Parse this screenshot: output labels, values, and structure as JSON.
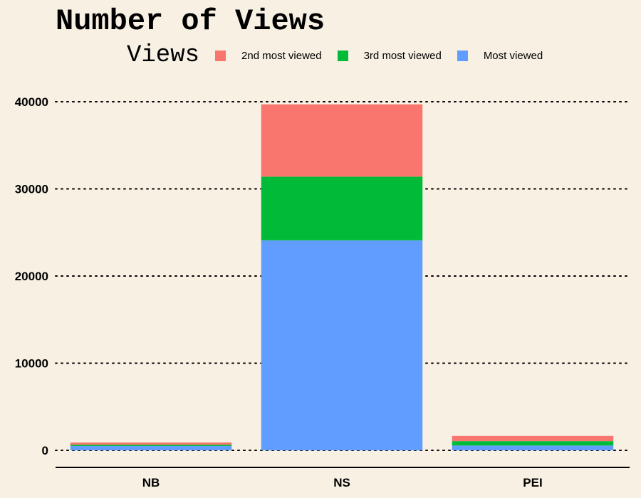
{
  "chart_data": {
    "type": "bar",
    "stacked": true,
    "title": "Number of Views",
    "xlabel": "",
    "ylabel": "",
    "categories": [
      "NB",
      "NS",
      "PEI"
    ],
    "ylim": [
      0,
      40000
    ],
    "yticks": [
      0,
      10000,
      20000,
      30000,
      40000
    ],
    "grid": "horizontal-dotted",
    "legend": {
      "title": "Views",
      "position": "top",
      "entries": [
        "2nd most viewed",
        "3rd most viewed",
        "Most viewed"
      ]
    },
    "series": [
      {
        "name": "Most viewed",
        "color": "#619cff",
        "values": [
          500,
          24100,
          550
        ]
      },
      {
        "name": "3rd most viewed",
        "color": "#00ba38",
        "values": [
          150,
          7300,
          500
        ]
      },
      {
        "name": "2nd most viewed",
        "color": "#f8766d",
        "values": [
          250,
          8300,
          600
        ]
      }
    ]
  }
}
